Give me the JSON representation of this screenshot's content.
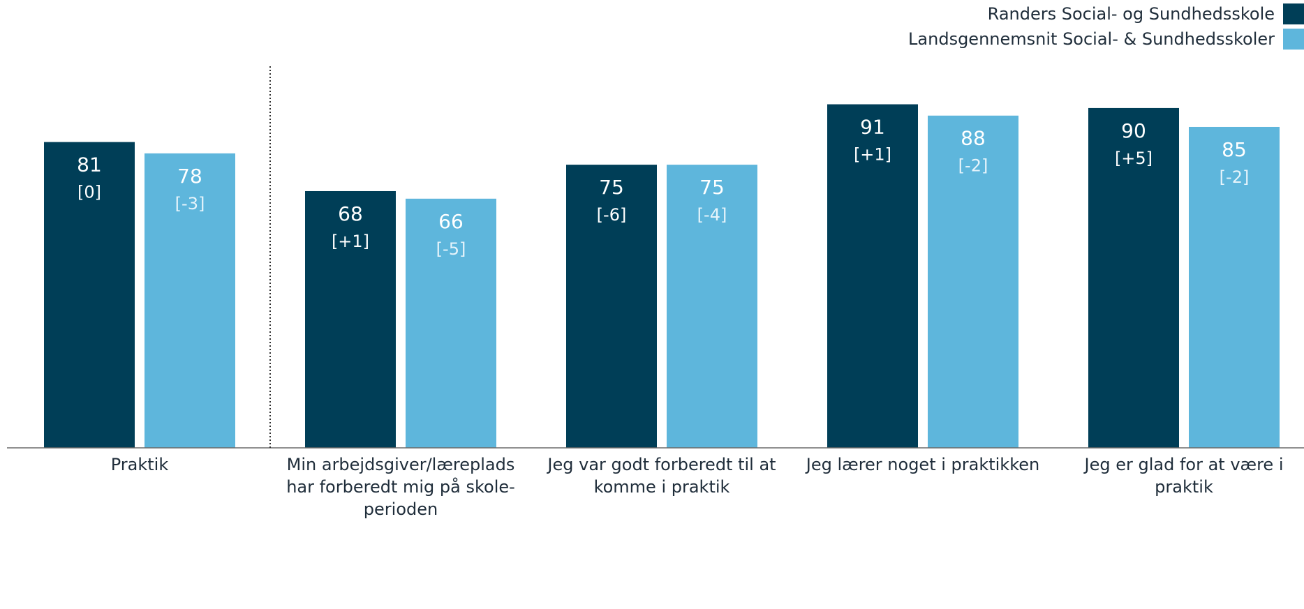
{
  "chart_data": {
    "type": "bar",
    "categories": [
      "Praktik",
      "Min arbejdsgiver/læreplads har forberedt mig på skole-perioden",
      "Jeg var godt forberedt til at komme i praktik",
      "Jeg lærer noget i praktikken",
      "Jeg er glad for at være i praktik"
    ],
    "category_lines": [
      [
        "Praktik"
      ],
      [
        "Min arbejdsgiver/læreplads",
        "har forberedt mig på skole-",
        "perioden"
      ],
      [
        "Jeg var godt forberedt til at",
        "komme i praktik"
      ],
      [
        "Jeg lærer noget i praktikken"
      ],
      [
        "Jeg er glad for at være i",
        "praktik"
      ]
    ],
    "series": [
      {
        "name": "Randers Social- og Sundhedsskole",
        "color": "#003e57",
        "values": [
          81,
          68,
          75,
          91,
          90
        ],
        "changes": [
          "[0]",
          "[+1]",
          "[-6]",
          "[+1]",
          "[+5]"
        ],
        "change_color": "#ffffff"
      },
      {
        "name": "Landsgennemsnit Social- & Sundhedsskoler",
        "color": "#5eb6dc",
        "values": [
          78,
          66,
          75,
          88,
          85
        ],
        "changes": [
          "[-3]",
          "[-5]",
          "[-4]",
          "[-2]",
          "[-2]"
        ],
        "change_color": "#e6f4fb"
      }
    ],
    "ylim": [
      0,
      100
    ],
    "legend_position": "top-right",
    "grid": false,
    "separator_after_category": 0
  }
}
